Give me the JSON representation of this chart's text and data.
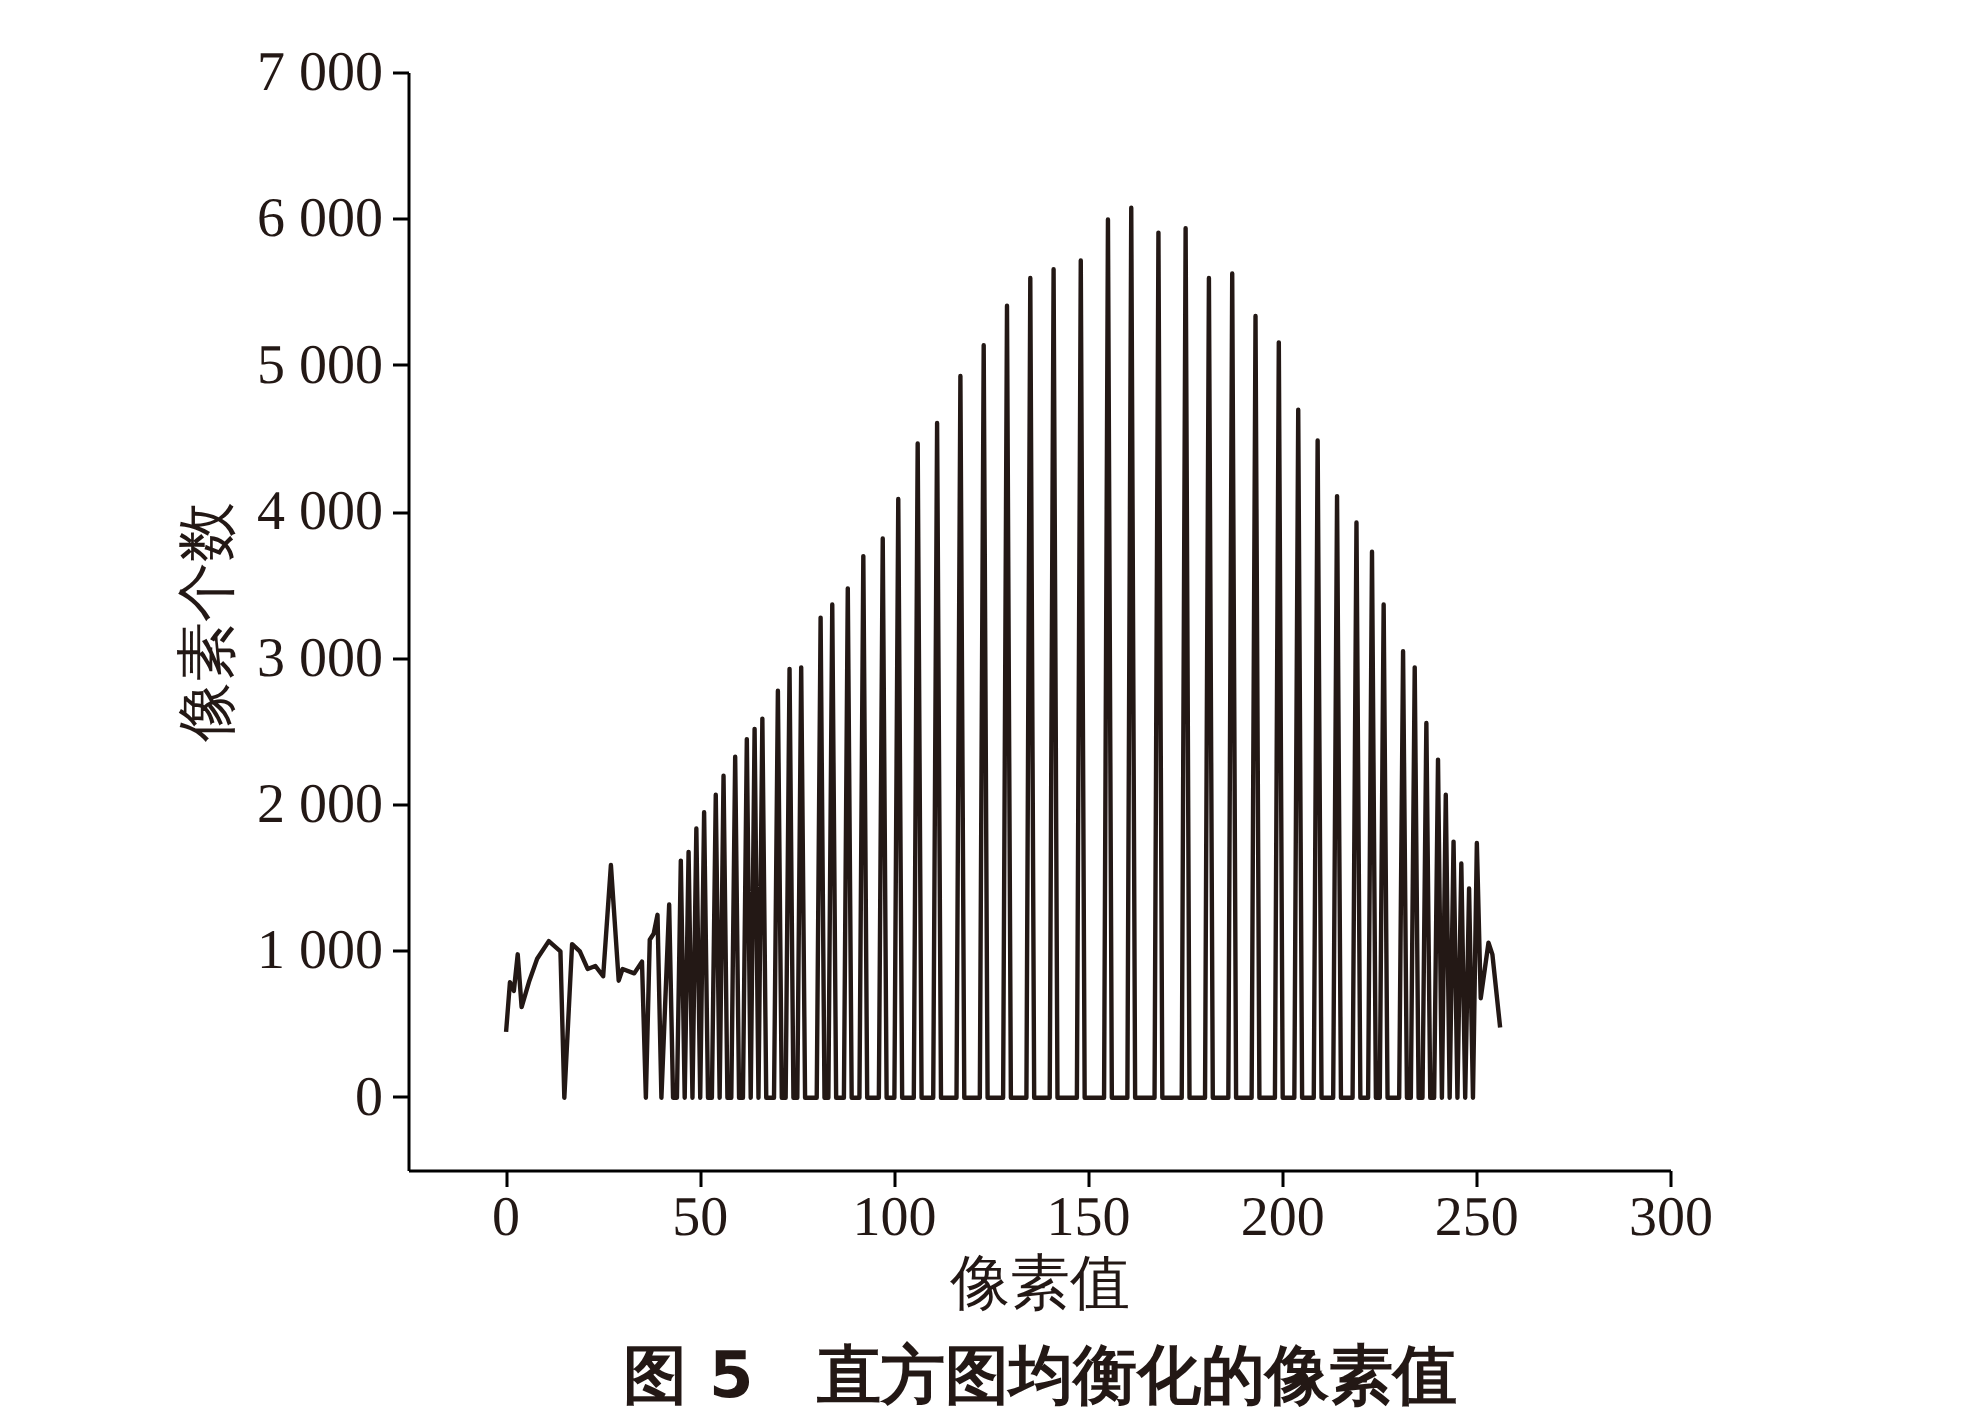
{
  "chart_data": {
    "type": "line",
    "xlabel": "像素值",
    "ylabel": "像素个数",
    "annotations": [
      "图 5　直方图均衡化的像素值"
    ],
    "xlim": [
      -25,
      300
    ],
    "xticks": [
      0,
      50,
      100,
      150,
      200,
      250,
      300
    ],
    "ylim": [
      -500,
      7000
    ],
    "yticks": [
      0,
      {
        "value": 1000,
        "label": "1 000"
      },
      {
        "value": 2000,
        "label": "2 000"
      },
      {
        "value": 3000,
        "label": "3 000"
      },
      {
        "value": 4000,
        "label": "4 000"
      },
      {
        "value": 5000,
        "label": "5 000"
      },
      {
        "value": 6000,
        "label": "6 000"
      },
      {
        "value": 7000,
        "label": "7 000"
      }
    ],
    "grid": false,
    "marker": "none",
    "line_style": "solid",
    "series": [
      {
        "color": "#231815",
        "x": [
          0,
          1,
          2,
          3,
          4,
          6,
          8,
          11,
          14,
          15,
          17,
          19,
          21,
          23,
          25,
          27,
          29,
          30,
          33,
          35,
          36,
          37,
          38,
          39,
          40,
          42,
          43,
          44,
          45,
          46,
          47,
          48,
          49,
          50,
          51,
          52,
          53,
          54,
          55,
          56,
          57,
          58,
          59,
          60,
          61,
          62,
          63,
          64,
          65,
          66,
          67,
          69,
          70,
          71,
          72,
          73,
          74,
          75,
          76,
          77,
          80,
          81,
          82,
          83,
          84,
          85,
          87,
          88,
          89,
          91,
          92,
          93,
          96,
          97,
          98,
          100,
          101,
          102,
          105,
          106,
          107,
          110,
          111,
          112,
          116,
          117,
          118,
          122,
          123,
          124,
          128,
          129,
          130,
          134,
          135,
          136,
          140,
          141,
          142,
          147,
          148,
          149,
          154,
          155,
          156,
          160,
          161,
          162,
          167,
          168,
          169,
          174,
          175,
          176,
          180,
          181,
          182,
          186,
          187,
          188,
          192,
          193,
          194,
          198,
          199,
          200,
          203,
          204,
          205,
          208,
          209,
          210,
          213,
          214,
          215,
          218,
          219,
          220,
          222,
          223,
          224,
          225,
          226,
          227,
          230,
          231,
          232,
          233,
          234,
          235,
          236,
          237,
          238,
          239,
          240,
          241,
          242,
          243,
          244,
          245,
          246,
          247,
          248,
          249,
          250,
          251,
          253,
          254,
          256
        ],
        "values": [
          450,
          790,
          730,
          980,
          620,
          800,
          950,
          1070,
          1000,
          0,
          1050,
          1000,
          880,
          900,
          830,
          1590,
          800,
          880,
          850,
          930,
          0,
          1080,
          1120,
          1250,
          0,
          1320,
          0,
          0,
          1620,
          0,
          1680,
          0,
          1840,
          0,
          1950,
          0,
          0,
          2070,
          0,
          2200,
          0,
          0,
          2330,
          0,
          0,
          2450,
          0,
          2520,
          0,
          2590,
          0,
          0,
          2780,
          0,
          0,
          2930,
          0,
          0,
          2940,
          0,
          0,
          3280,
          0,
          0,
          3370,
          0,
          0,
          3480,
          0,
          0,
          3700,
          0,
          0,
          3820,
          0,
          0,
          4090,
          0,
          0,
          4470,
          0,
          0,
          4610,
          0,
          0,
          4930,
          0,
          0,
          5140,
          0,
          0,
          5410,
          0,
          0,
          5600,
          0,
          0,
          5660,
          0,
          0,
          5720,
          0,
          0,
          6000,
          0,
          0,
          6080,
          0,
          0,
          5910,
          0,
          0,
          5940,
          0,
          0,
          5600,
          0,
          0,
          5630,
          0,
          0,
          5340,
          0,
          0,
          5160,
          0,
          0,
          4700,
          0,
          0,
          4490,
          0,
          0,
          4110,
          0,
          0,
          3930,
          0,
          0,
          3730,
          0,
          0,
          3370,
          0,
          0,
          3050,
          0,
          0,
          2940,
          0,
          0,
          2560,
          0,
          0,
          2310,
          0,
          2070,
          0,
          1750,
          0,
          1600,
          0,
          1430,
          0,
          1740,
          680,
          1060,
          980,
          480
        ]
      }
    ]
  }
}
